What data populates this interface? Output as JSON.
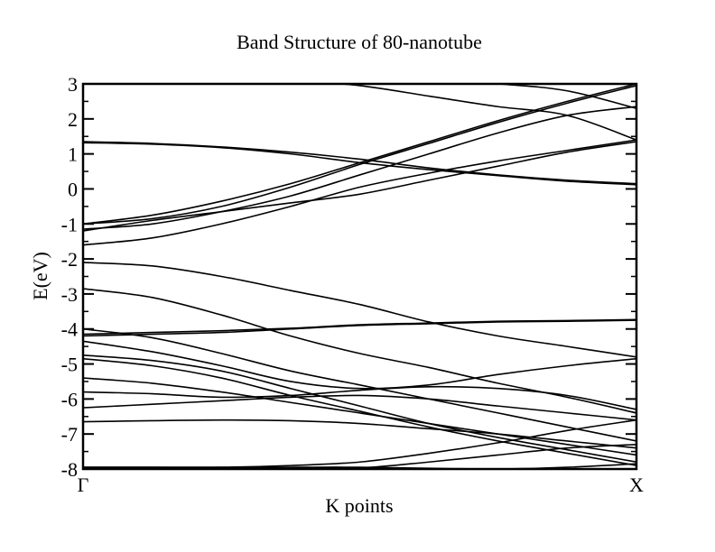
{
  "chart_data": {
    "type": "line",
    "title": "Band Structure of 80-nanotube",
    "xlabel": "K points",
    "ylabel": "E(eV)",
    "x_ticks": [
      "Γ",
      "X"
    ],
    "y_ticks": [
      3,
      2,
      1,
      0,
      -1,
      -2,
      -3,
      -4,
      -5,
      -6,
      -7,
      -8
    ],
    "xlim": [
      0,
      1
    ],
    "ylim": [
      -8,
      3
    ],
    "grid": false,
    "legend": "none",
    "line_color": "#000000",
    "x": [
      0,
      0.125,
      0.25,
      0.375,
      0.5,
      0.625,
      0.75,
      0.875,
      1
    ],
    "series": [
      {
        "values": [
          1.35,
          1.3,
          1.2,
          1.05,
          0.85,
          0.6,
          0.4,
          0.25,
          0.15
        ]
      },
      {
        "values": [
          1.32,
          1.28,
          1.18,
          1.0,
          0.75,
          0.55,
          0.38,
          0.22,
          0.12
        ]
      },
      {
        "values": [
          -1.0,
          -0.75,
          -0.35,
          0.15,
          0.75,
          1.35,
          1.95,
          2.5,
          3.0
        ]
      },
      {
        "values": [
          -1.0,
          -0.85,
          -0.5,
          0.05,
          0.7,
          1.3,
          1.9,
          2.45,
          2.95
        ]
      },
      {
        "values": [
          -1.15,
          -1.0,
          -0.65,
          -0.2,
          0.4,
          1.0,
          1.6,
          2.1,
          2.35
        ]
      },
      {
        "values": [
          -1.2,
          -0.9,
          -0.65,
          -0.4,
          -0.15,
          0.25,
          0.65,
          1.05,
          1.35
        ]
      },
      {
        "values": [
          -1.6,
          -1.4,
          -1.0,
          -0.5,
          0.05,
          0.45,
          0.8,
          1.1,
          1.4
        ]
      },
      {
        "values": [
          3.4,
          3.3,
          3.2,
          3.1,
          2.95,
          2.65,
          2.35,
          2.1,
          1.4
        ]
      },
      {
        "values": [
          3.6,
          3.5,
          3.4,
          3.3,
          3.2,
          3.1,
          3.0,
          2.8,
          2.3
        ]
      },
      {
        "values": [
          -2.1,
          -2.2,
          -2.5,
          -2.9,
          -3.3,
          -3.8,
          -4.2,
          -4.5,
          -4.8
        ]
      },
      {
        "values": [
          -2.85,
          -3.1,
          -3.6,
          -4.2,
          -4.7,
          -5.1,
          -5.55,
          -5.95,
          -6.4
        ]
      },
      {
        "values": [
          -4.2,
          -4.15,
          -4.1,
          -4.0,
          -3.9,
          -3.85,
          -3.8,
          -3.78,
          -3.75
        ]
      },
      {
        "values": [
          -4.15,
          -4.1,
          -4.05,
          -3.98,
          -3.88,
          -3.83,
          -3.78,
          -3.76,
          -3.73
        ]
      },
      {
        "values": [
          -4.0,
          -4.25,
          -4.7,
          -5.2,
          -5.6,
          -6.0,
          -6.4,
          -6.8,
          -7.2
        ]
      },
      {
        "values": [
          -4.35,
          -4.65,
          -5.05,
          -5.5,
          -5.7,
          -5.6,
          -5.3,
          -5.05,
          -4.85
        ]
      },
      {
        "values": [
          -4.75,
          -4.9,
          -5.2,
          -5.7,
          -6.2,
          -6.7,
          -7.1,
          -7.45,
          -7.8
        ]
      },
      {
        "values": [
          -4.85,
          -5.05,
          -5.4,
          -5.9,
          -6.35,
          -6.8,
          -7.2,
          -7.55,
          -7.9
        ]
      },
      {
        "values": [
          -5.4,
          -5.55,
          -5.8,
          -6.1,
          -6.4,
          -6.7,
          -7.0,
          -7.3,
          -7.6
        ]
      },
      {
        "values": [
          -5.8,
          -5.85,
          -5.95,
          -5.9,
          -5.75,
          -5.65,
          -5.7,
          -5.9,
          -6.3
        ]
      },
      {
        "values": [
          -6.25,
          -6.15,
          -6.05,
          -5.95,
          -5.9,
          -6.0,
          -6.2,
          -6.4,
          -6.6
        ]
      },
      {
        "values": [
          -6.65,
          -6.62,
          -6.6,
          -6.62,
          -6.7,
          -6.85,
          -7.0,
          -7.2,
          -7.4
        ]
      },
      {
        "values": [
          -7.95,
          -7.95,
          -7.95,
          -7.9,
          -7.8,
          -7.55,
          -7.25,
          -6.9,
          -6.6
        ]
      },
      {
        "values": [
          -7.97,
          -7.97,
          -7.97,
          -7.97,
          -7.97,
          -7.8,
          -7.6,
          -7.4,
          -7.3
        ]
      },
      {
        "values": [
          -7.95,
          -7.95,
          -7.95,
          -7.95,
          -7.95,
          -7.98,
          -8.0,
          -7.95,
          -7.85
        ]
      }
    ]
  }
}
